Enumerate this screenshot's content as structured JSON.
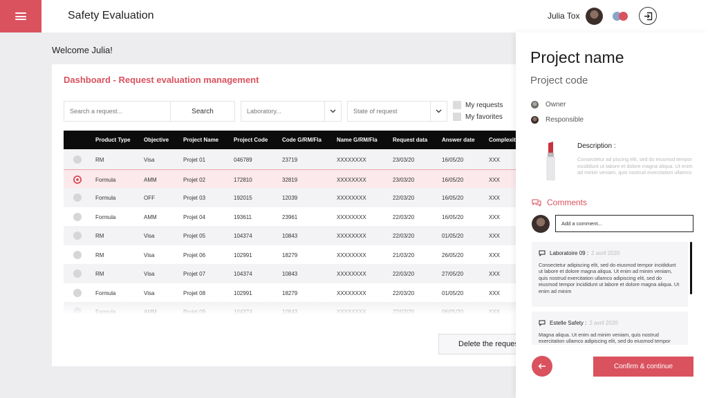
{
  "header": {
    "app_title": "Safety Evaluation",
    "user_name": "Julia Tox",
    "icons": {
      "menu": "hamburger-icon",
      "logout": "logout-icon",
      "theme": "theme-toggle-icon"
    },
    "colors": {
      "accent": "#d9525e"
    }
  },
  "welcome": "Welcome Julia!",
  "dashboard": {
    "title": "Dashboard - Request evaluation management",
    "search_placeholder": "Search a request...",
    "search_button": "Search",
    "laboratory_select": "Laboratory...",
    "state_select": "State of request",
    "filters": [
      "My requests",
      "My favorites"
    ],
    "columns": [
      "Product Type",
      "Objective",
      "Project Name",
      "Project Code",
      "Code G/RM/Fla",
      "Name G/RM/Fla",
      "Request data",
      "Answer date",
      "Complexity"
    ],
    "rows": [
      [
        "RM",
        "Visa",
        "Projet 01",
        "046789",
        "23719",
        "XXXXXXXX",
        "23/03/20",
        "16/05/20",
        "XXX"
      ],
      [
        "Formula",
        "AMM",
        "Projet 02",
        "172810",
        "32819",
        "XXXXXXXX",
        "23/03/20",
        "16/05/20",
        "XXX"
      ],
      [
        "Formula",
        "OFF",
        "Projet 03",
        "192015",
        "12039",
        "XXXXXXXX",
        "22/03/20",
        "16/05/20",
        "XXX"
      ],
      [
        "Formula",
        "AMM",
        "Projet 04",
        "193611",
        "23961",
        "XXXXXXXX",
        "22/03/20",
        "16/05/20",
        "XXX"
      ],
      [
        "RM",
        "Visa",
        "Projet 05",
        "104374",
        "10843",
        "XXXXXXXX",
        "22/03/20",
        "01/05/20",
        "XXX"
      ],
      [
        "RM",
        "Visa",
        "Projet 06",
        "102991",
        "18279",
        "XXXXXXXX",
        "21/03/20",
        "26/05/20",
        "XXX"
      ],
      [
        "RM",
        "Visa",
        "Projet 07",
        "104374",
        "10843",
        "XXXXXXXX",
        "22/03/20",
        "27/05/20",
        "XXX"
      ],
      [
        "Formula",
        "Visa",
        "Projet 08",
        "102991",
        "18279",
        "XXXXXXXX",
        "22/03/20",
        "01/05/20",
        "XXX"
      ],
      [
        "Formula",
        "AMM",
        "Projet 09",
        "104374",
        "10843",
        "XXXXXXXX",
        "22/03/20",
        "06/05/20",
        "XXX"
      ]
    ],
    "selected_row": 1,
    "delete_button": "Delete the request"
  },
  "panel": {
    "project_name": "Project name",
    "project_code": "Project code",
    "owner_label": "Owner",
    "responsible_label": "Responsible",
    "description_label": "Description :",
    "description_text": "Consectetur ad piscing elit, sed do eiusmod tempor incididunt ut labore et dolore magna aliqua. Ut enim ad minim veniam, quis nostrud exercitation ullamco",
    "comments_label": "Comments",
    "comment_placeholder": "Add a comment...",
    "comments": [
      {
        "author": "Laboratoire 09 :",
        "date": "2 avril 2020",
        "text": "Consectetur adipiscing elit, sed do eiusmod tempor incididunt ut labore et dolore magna aliqua. Ut enim ad minim veniam, quis nostrud exercitation ullamco adipiscing elit, sed do eiusmod tempor incididunt ut labore et dolore magna aliqua. Ut enim ad minim"
      },
      {
        "author": "Estelle Safety :",
        "date": "2 avril 2020",
        "text": "Magna aliqua. Ut enim ad minim veniam, quis nostrud exercitation ullamco adipiscing elit, sed do eiusmod tempor incididunt ut labore et dolore magna aliqua."
      }
    ],
    "confirm_button": "Confirm & continue"
  }
}
